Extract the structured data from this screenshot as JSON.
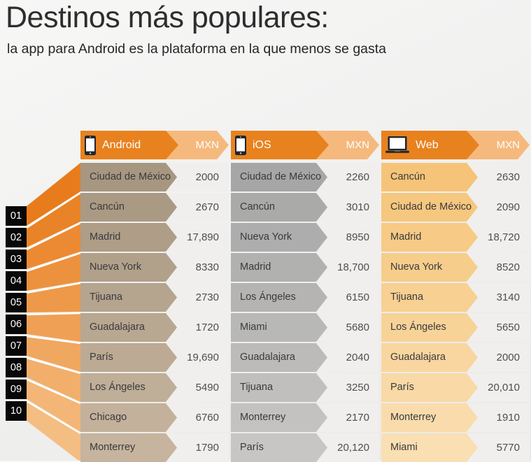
{
  "header": {
    "title": "Destinos más populares:",
    "subtitle": "la app para Android es la plataforma en la que menos se gasta"
  },
  "ranks": [
    "01",
    "02",
    "03",
    "04",
    "05",
    "06",
    "07",
    "08",
    "09",
    "10"
  ],
  "colors": {
    "header_dark": "#e8821e",
    "header_light": "#f5b97e",
    "value_bg": "#f0efed",
    "fan_top": "#e87c1c",
    "fan_bottom": "#f4bd82",
    "rank_badge_bg": "#080808"
  },
  "columns": [
    {
      "platform": "Android",
      "icon": "smartphone-icon",
      "currency": "MXN",
      "row_color_top": "#a79781",
      "row_color_bottom": "#c6b49e",
      "rows": [
        {
          "destination": "Ciudad de México",
          "price": "2000"
        },
        {
          "destination": "Cancún",
          "price": "2670"
        },
        {
          "destination": "Madrid",
          "price": "17,890"
        },
        {
          "destination": "Nueva York",
          "price": "8330"
        },
        {
          "destination": "Tijuana",
          "price": "2730"
        },
        {
          "destination": "Guadalajara",
          "price": "1720"
        },
        {
          "destination": "París",
          "price": "19,690"
        },
        {
          "destination": "Los Ángeles",
          "price": "5490"
        },
        {
          "destination": "Chicago",
          "price": "6760"
        },
        {
          "destination": "Monterrey",
          "price": "1790"
        }
      ]
    },
    {
      "platform": "iOS",
      "icon": "smartphone-icon",
      "currency": "MXN",
      "row_color_top": "#a6a6a6",
      "row_color_bottom": "#c7c6c4",
      "rows": [
        {
          "destination": "Ciudad de México",
          "price": "2260"
        },
        {
          "destination": "Cancún",
          "price": "3010"
        },
        {
          "destination": "Nueva York",
          "price": "8950"
        },
        {
          "destination": "Madrid",
          "price": "18,700"
        },
        {
          "destination": "Los Ángeles",
          "price": "6150"
        },
        {
          "destination": "Miami",
          "price": "5680"
        },
        {
          "destination": "Guadalajara",
          "price": "2040"
        },
        {
          "destination": "Tijuana",
          "price": "3250"
        },
        {
          "destination": "Monterrey",
          "price": "2170"
        },
        {
          "destination": "París",
          "price": "20,120"
        }
      ]
    },
    {
      "platform": "Web",
      "icon": "laptop-icon",
      "currency": "MXN",
      "row_color_top": "#f6c478",
      "row_color_bottom": "#fadfb2",
      "rows": [
        {
          "destination": "Cancún",
          "price": "2630"
        },
        {
          "destination": "Ciudad de México",
          "price": "2090"
        },
        {
          "destination": "Madrid",
          "price": "18,720"
        },
        {
          "destination": "Nueva York",
          "price": "8520"
        },
        {
          "destination": "Tijuana",
          "price": "3140"
        },
        {
          "destination": "Los Ángeles",
          "price": "5650"
        },
        {
          "destination": "Guadalajara",
          "price": "2000"
        },
        {
          "destination": "París",
          "price": "20,010"
        },
        {
          "destination": "Monterrey",
          "price": "1910"
        },
        {
          "destination": "Miami",
          "price": "5770"
        }
      ]
    }
  ],
  "chart_data": {
    "type": "table",
    "title": "Destinos más populares:",
    "subtitle": "la app para Android es la plataforma en la que menos se gasta",
    "currency": "MXN",
    "rank_order": [
      1,
      2,
      3,
      4,
      5,
      6,
      7,
      8,
      9,
      10
    ],
    "series": [
      {
        "name": "Android",
        "rows": [
          [
            "Ciudad de México",
            2000
          ],
          [
            "Cancún",
            2670
          ],
          [
            "Madrid",
            17890
          ],
          [
            "Nueva York",
            8330
          ],
          [
            "Tijuana",
            2730
          ],
          [
            "Guadalajara",
            1720
          ],
          [
            "París",
            19690
          ],
          [
            "Los Ángeles",
            5490
          ],
          [
            "Chicago",
            6760
          ],
          [
            "Monterrey",
            1790
          ]
        ]
      },
      {
        "name": "iOS",
        "rows": [
          [
            "Ciudad de México",
            2260
          ],
          [
            "Cancún",
            3010
          ],
          [
            "Nueva York",
            8950
          ],
          [
            "Madrid",
            18700
          ],
          [
            "Los Ángeles",
            6150
          ],
          [
            "Miami",
            5680
          ],
          [
            "Guadalajara",
            2040
          ],
          [
            "Tijuana",
            3250
          ],
          [
            "Monterrey",
            2170
          ],
          [
            "París",
            20120
          ]
        ]
      },
      {
        "name": "Web",
        "rows": [
          [
            "Cancún",
            2630
          ],
          [
            "Ciudad de México",
            2090
          ],
          [
            "Madrid",
            18720
          ],
          [
            "Nueva York",
            8520
          ],
          [
            "Tijuana",
            3140
          ],
          [
            "Los Ángeles",
            5650
          ],
          [
            "Guadalajara",
            2000
          ],
          [
            "París",
            20010
          ],
          [
            "Monterrey",
            1910
          ],
          [
            "Miami",
            5770
          ]
        ]
      }
    ]
  }
}
